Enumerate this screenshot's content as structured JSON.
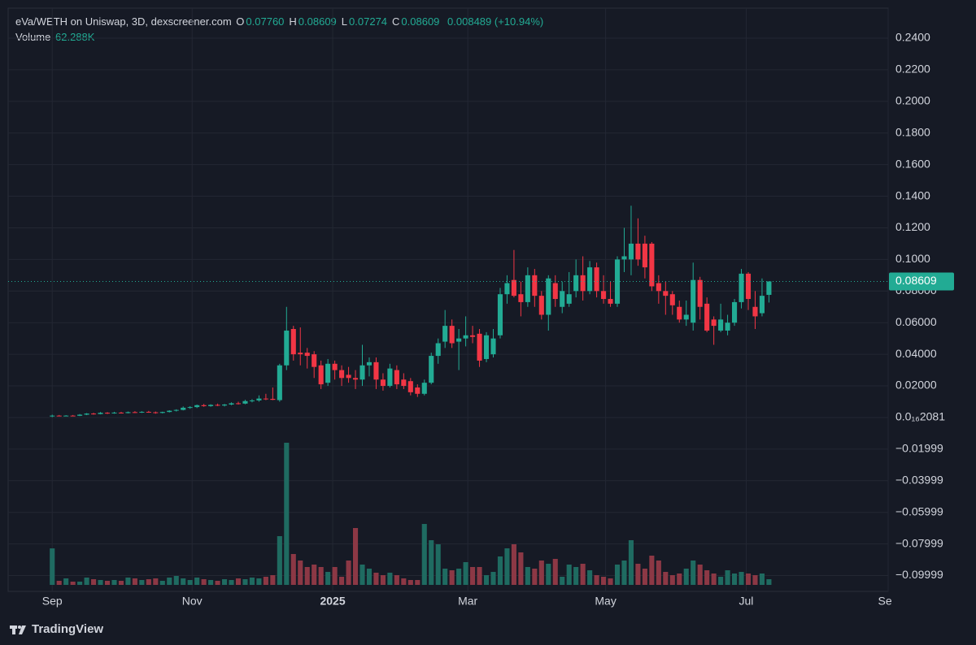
{
  "chart_data": {
    "type": "candlestick",
    "title": "eVa/WETH on Uniswap, 3D, dexscreener.com",
    "ohlc_legend": [
      {
        "label": "O",
        "value": "0.07760"
      },
      {
        "label": "H",
        "value": "0.08609"
      },
      {
        "label": "L",
        "value": "0.07274"
      },
      {
        "label": "C",
        "value": "0.08609"
      }
    ],
    "change": "0.008489 (+10.94%)",
    "volume_label": "Volume",
    "volume_value": "62.288K",
    "last_price_label": "0.08609",
    "brand": "TradingView",
    "up_color": "#22ab94",
    "down_color": "#f23645",
    "volume_up_color": "#1f6b61",
    "volume_down_color": "#8c3845",
    "grid": true,
    "open": [
      0.001,
      0.0012,
      0.0011,
      0.0012,
      0.0011,
      0.0018,
      0.0025,
      0.0022,
      0.003,
      0.0026,
      0.0031,
      0.0028,
      0.0034,
      0.0032,
      0.0036,
      0.0033,
      0.0029,
      0.0035,
      0.0043,
      0.0048,
      0.0062,
      0.0066,
      0.0078,
      0.0072,
      0.008,
      0.0076,
      0.0082,
      0.009,
      0.0088,
      0.0104,
      0.0108,
      0.012,
      0.0118,
      0.011,
      0.033,
      0.056,
      0.041,
      0.041,
      0.04,
      0.033,
      0.022,
      0.034,
      0.03,
      0.027,
      0.025,
      0.024,
      0.033,
      0.035,
      0.024,
      0.02,
      0.03,
      0.024,
      0.023,
      0.019,
      0.015,
      0.022,
      0.039,
      0.048,
      0.058,
      0.048,
      0.05,
      0.052,
      0.053,
      0.037,
      0.04,
      0.052,
      0.078,
      0.087,
      0.078,
      0.073,
      0.09,
      0.077,
      0.065,
      0.085,
      0.07,
      0.072,
      0.08,
      0.09,
      0.08,
      0.095,
      0.08,
      0.075,
      0.072,
      0.1,
      0.1,
      0.11,
      0.11,
      0.11,
      0.085,
      0.08,
      0.078,
      0.07,
      0.062,
      0.06,
      0.087,
      0.072,
      0.062,
      0.055,
      0.055,
      0.06,
      0.073,
      0.091,
      0.07,
      0.066,
      0.0776
    ],
    "high": [
      0.0018,
      0.0016,
      0.0015,
      0.0016,
      0.0022,
      0.0028,
      0.003,
      0.0035,
      0.0034,
      0.0036,
      0.0036,
      0.0038,
      0.004,
      0.004,
      0.0042,
      0.0038,
      0.0037,
      0.0046,
      0.0052,
      0.007,
      0.0072,
      0.0082,
      0.0086,
      0.0084,
      0.0088,
      0.0086,
      0.0096,
      0.01,
      0.0112,
      0.0116,
      0.014,
      0.015,
      0.019,
      0.034,
      0.07,
      0.058,
      0.057,
      0.044,
      0.042,
      0.036,
      0.037,
      0.036,
      0.033,
      0.032,
      0.03,
      0.046,
      0.038,
      0.038,
      0.028,
      0.034,
      0.033,
      0.028,
      0.025,
      0.021,
      0.024,
      0.041,
      0.05,
      0.068,
      0.062,
      0.056,
      0.064,
      0.058,
      0.056,
      0.054,
      0.056,
      0.082,
      0.09,
      0.106,
      0.086,
      0.095,
      0.094,
      0.08,
      0.09,
      0.09,
      0.086,
      0.092,
      0.1,
      0.102,
      0.099,
      0.098,
      0.09,
      0.086,
      0.102,
      0.12,
      0.134,
      0.126,
      0.115,
      0.111,
      0.09,
      0.086,
      0.08,
      0.074,
      0.074,
      0.098,
      0.089,
      0.076,
      0.064,
      0.072,
      0.065,
      0.075,
      0.094,
      0.092,
      0.08,
      0.088,
      0.08609
    ],
    "low": [
      0.0002,
      0.0008,
      0.0008,
      0.0009,
      0.0009,
      0.0015,
      0.0018,
      0.002,
      0.0022,
      0.0024,
      0.0025,
      0.0026,
      0.0028,
      0.0029,
      0.003,
      0.0024,
      0.0026,
      0.0032,
      0.0038,
      0.0045,
      0.0055,
      0.006,
      0.0068,
      0.0068,
      0.0072,
      0.007,
      0.0078,
      0.0082,
      0.0084,
      0.0096,
      0.01,
      0.011,
      0.011,
      0.01,
      0.03,
      0.036,
      0.033,
      0.031,
      0.025,
      0.018,
      0.02,
      0.024,
      0.02,
      0.022,
      0.018,
      0.02,
      0.026,
      0.018,
      0.017,
      0.019,
      0.018,
      0.018,
      0.014,
      0.013,
      0.014,
      0.021,
      0.034,
      0.044,
      0.044,
      0.03,
      0.045,
      0.047,
      0.032,
      0.035,
      0.038,
      0.05,
      0.072,
      0.076,
      0.064,
      0.07,
      0.07,
      0.062,
      0.055,
      0.07,
      0.066,
      0.07,
      0.076,
      0.074,
      0.078,
      0.076,
      0.072,
      0.07,
      0.07,
      0.092,
      0.09,
      0.096,
      0.088,
      0.08,
      0.072,
      0.065,
      0.065,
      0.06,
      0.058,
      0.055,
      0.062,
      0.054,
      0.046,
      0.054,
      0.052,
      0.058,
      0.069,
      0.068,
      0.056,
      0.064,
      0.07274
    ],
    "close": [
      0.0012,
      0.0011,
      0.0012,
      0.0011,
      0.0018,
      0.0025,
      0.0022,
      0.003,
      0.0026,
      0.0031,
      0.0028,
      0.0034,
      0.0032,
      0.0036,
      0.0033,
      0.0029,
      0.0035,
      0.0043,
      0.0048,
      0.0062,
      0.0066,
      0.0078,
      0.0072,
      0.008,
      0.0076,
      0.0082,
      0.009,
      0.0088,
      0.0104,
      0.0108,
      0.012,
      0.0118,
      0.0112,
      0.033,
      0.055,
      0.04,
      0.04,
      0.039,
      0.032,
      0.021,
      0.034,
      0.03,
      0.025,
      0.025,
      0.024,
      0.033,
      0.035,
      0.024,
      0.02,
      0.031,
      0.021,
      0.02,
      0.016,
      0.015,
      0.022,
      0.039,
      0.047,
      0.058,
      0.047,
      0.05,
      0.052,
      0.051,
      0.036,
      0.052,
      0.05,
      0.078,
      0.085,
      0.077,
      0.073,
      0.09,
      0.077,
      0.065,
      0.088,
      0.075,
      0.08,
      0.078,
      0.09,
      0.08,
      0.095,
      0.08,
      0.075,
      0.072,
      0.1,
      0.102,
      0.11,
      0.1,
      0.095,
      0.083,
      0.08,
      0.077,
      0.071,
      0.062,
      0.065,
      0.087,
      0.07,
      0.055,
      0.058,
      0.062,
      0.06,
      0.073,
      0.091,
      0.075,
      0.064,
      0.077,
      0.08609
    ],
    "volume": [
      400000,
      44500,
      71200,
      35600,
      35600,
      80100,
      62300,
      53400,
      44500,
      53400,
      44500,
      80100,
      71200,
      53400,
      62300,
      71200,
      44500,
      80100,
      97900,
      71200,
      53400,
      80100,
      62300,
      53400,
      44500,
      62300,
      53400,
      71200,
      62300,
      80100,
      71200,
      89000,
      106800,
      534000,
      1557500,
      338200,
      267000,
      195800,
      222500,
      195800,
      142400,
      195800,
      89000,
      267000,
      623000,
      222500,
      178000,
      133500,
      106800,
      133500,
      106800,
      71200,
      53400,
      53400,
      667500,
      489500,
      445000,
      178000,
      160200,
      178000,
      249200,
      195800,
      195800,
      106800,
      142400,
      311500,
      400500,
      445000,
      356000,
      195800,
      178000,
      267000,
      231400,
      284800,
      89000,
      222500,
      195800,
      231400,
      160200,
      106800,
      89000,
      71200,
      222500,
      267000,
      489500,
      231400,
      178000,
      320400,
      267000,
      142400,
      106800,
      124600,
      178000,
      267000,
      222500,
      160200,
      124600,
      89000,
      160200,
      124600,
      142400,
      124600,
      106800,
      124600,
      62288
    ],
    "ylim": [
      -0.11,
      0.259
    ],
    "yticks": [
      {
        "value": 0.24,
        "label": "0.2400"
      },
      {
        "value": 0.22,
        "label": "0.2200"
      },
      {
        "value": 0.2,
        "label": "0.2000"
      },
      {
        "value": 0.18,
        "label": "0.1800"
      },
      {
        "value": 0.16,
        "label": "0.1600"
      },
      {
        "value": 0.14,
        "label": "0.1400"
      },
      {
        "value": 0.12,
        "label": "0.1200"
      },
      {
        "value": 0.1,
        "label": "0.1000"
      },
      {
        "value": 0.08,
        "label": "0.08000"
      },
      {
        "value": 0.06,
        "label": "0.06000"
      },
      {
        "value": 0.04,
        "label": "0.04000"
      },
      {
        "value": 0.02,
        "label": "0.02000"
      },
      {
        "value": 0,
        "label": "0.0₁₆2081"
      },
      {
        "value": -0.01999,
        "label": "−0.01999"
      },
      {
        "value": -0.03999,
        "label": "−0.03999"
      },
      {
        "value": -0.05999,
        "label": "−0.05999"
      },
      {
        "value": -0.07999,
        "label": "−0.07999"
      },
      {
        "value": -0.09999,
        "label": "−0.09999"
      }
    ],
    "xlim": [
      -6.4,
      121.3
    ],
    "xticks": [
      {
        "value": 0,
        "label": "Sep"
      },
      {
        "value": 20.3,
        "label": "Nov"
      },
      {
        "value": 40.7,
        "label": "2025"
      },
      {
        "value": 60.3,
        "label": "Mar"
      },
      {
        "value": 80.3,
        "label": "May"
      },
      {
        "value": 100.7,
        "label": "Jul"
      },
      {
        "value": 121.3,
        "label": "Sep"
      }
    ]
  }
}
